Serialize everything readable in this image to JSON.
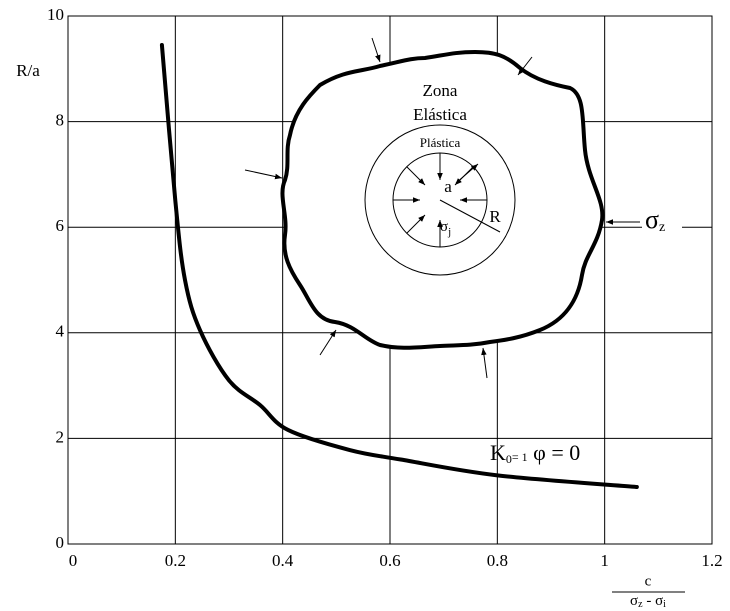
{
  "chart_data": {
    "type": "line",
    "x": [
      0.175,
      0.2,
      0.218,
      0.246,
      0.3,
      0.358,
      0.41,
      0.525,
      0.62,
      0.8,
      1.06
    ],
    "series": [
      {
        "color": "#000000",
        "values": [
          9.45,
          6.5,
          5.0,
          4.05,
          3.1,
          2.63,
          2.16,
          1.78,
          1.6,
          1.3,
          1.08
        ]
      }
    ],
    "xlim": [
      0,
      1.2
    ],
    "ylim": [
      0,
      10
    ],
    "xticks": [
      0,
      0.2,
      0.4,
      0.6,
      0.8,
      1.0,
      1.2
    ],
    "yticks": [
      0,
      2,
      4,
      6,
      8,
      10
    ],
    "grid": true,
    "y_label": "R/a",
    "x_label": {
      "numerator": "c",
      "denominator": {
        "a": "σ",
        "a_sub": "z",
        "mid": " - σ",
        "b_sub": "i"
      }
    },
    "annotations": {
      "zona": "Zona",
      "elastica": "Elástica",
      "plastica": "Plástica",
      "a": "a",
      "sigma_j": {
        "text": "σ",
        "sub": "j"
      },
      "r": "R",
      "sigma_z": {
        "text": "σ",
        "sub": "z"
      },
      "curve_label": {
        "text": "K",
        "sub": "0",
        "mid": "= 1",
        "rest": " φ = 0"
      }
    }
  }
}
